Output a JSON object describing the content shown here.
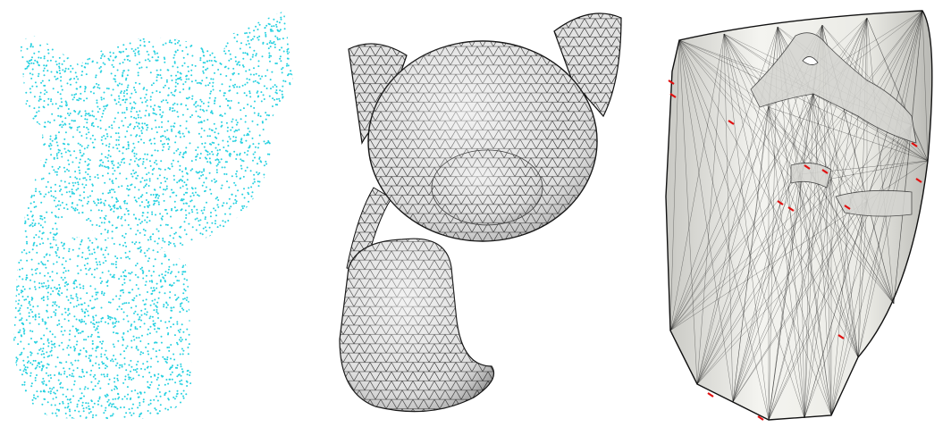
{
  "figure": {
    "panels": [
      {
        "id": "point-cloud",
        "kind": "point-cloud",
        "color": "#27d1e0"
      },
      {
        "id": "triangle-mesh",
        "kind": "mesh",
        "fill": "#d9d9d9",
        "edge_color": "#1a1a1a"
      },
      {
        "id": "reconstruction",
        "kind": "faulty-mesh",
        "fill": "#f1f1ee",
        "edge_color": "#111111",
        "error_color": "#e01010"
      }
    ]
  }
}
